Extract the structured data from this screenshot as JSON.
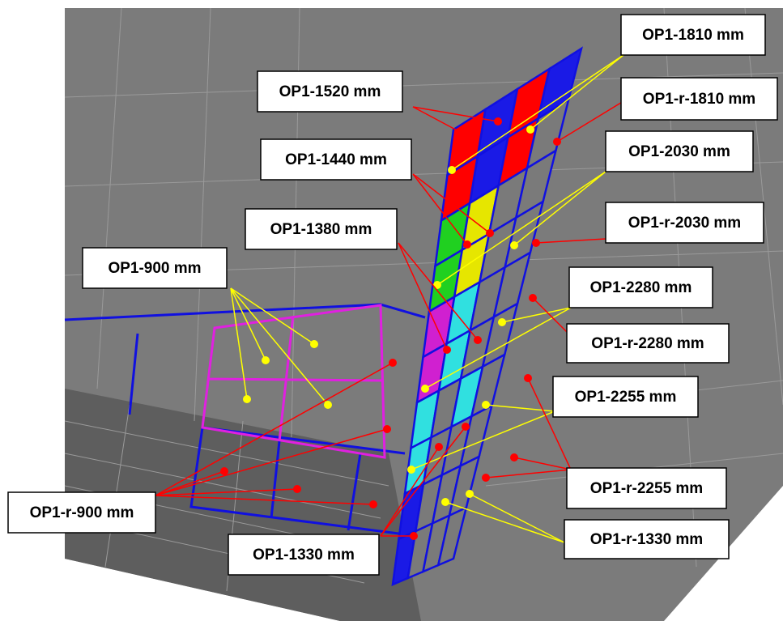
{
  "labels": [
    "OP1-1810 mm",
    "OP1-1520 mm",
    "OP1-r-1810 mm",
    "OP1-1440 mm",
    "OP1-2030 mm",
    "OP1-1380 mm",
    "OP1-r-2030 mm",
    "OP1-900 mm",
    "OP1-2280 mm",
    "OP1-r-2280 mm",
    "OP1-2255 mm",
    "OP1-r-2255 mm",
    "OP1-r-900 mm",
    "OP1-r-1330 mm",
    "OP1-1330 mm"
  ]
}
